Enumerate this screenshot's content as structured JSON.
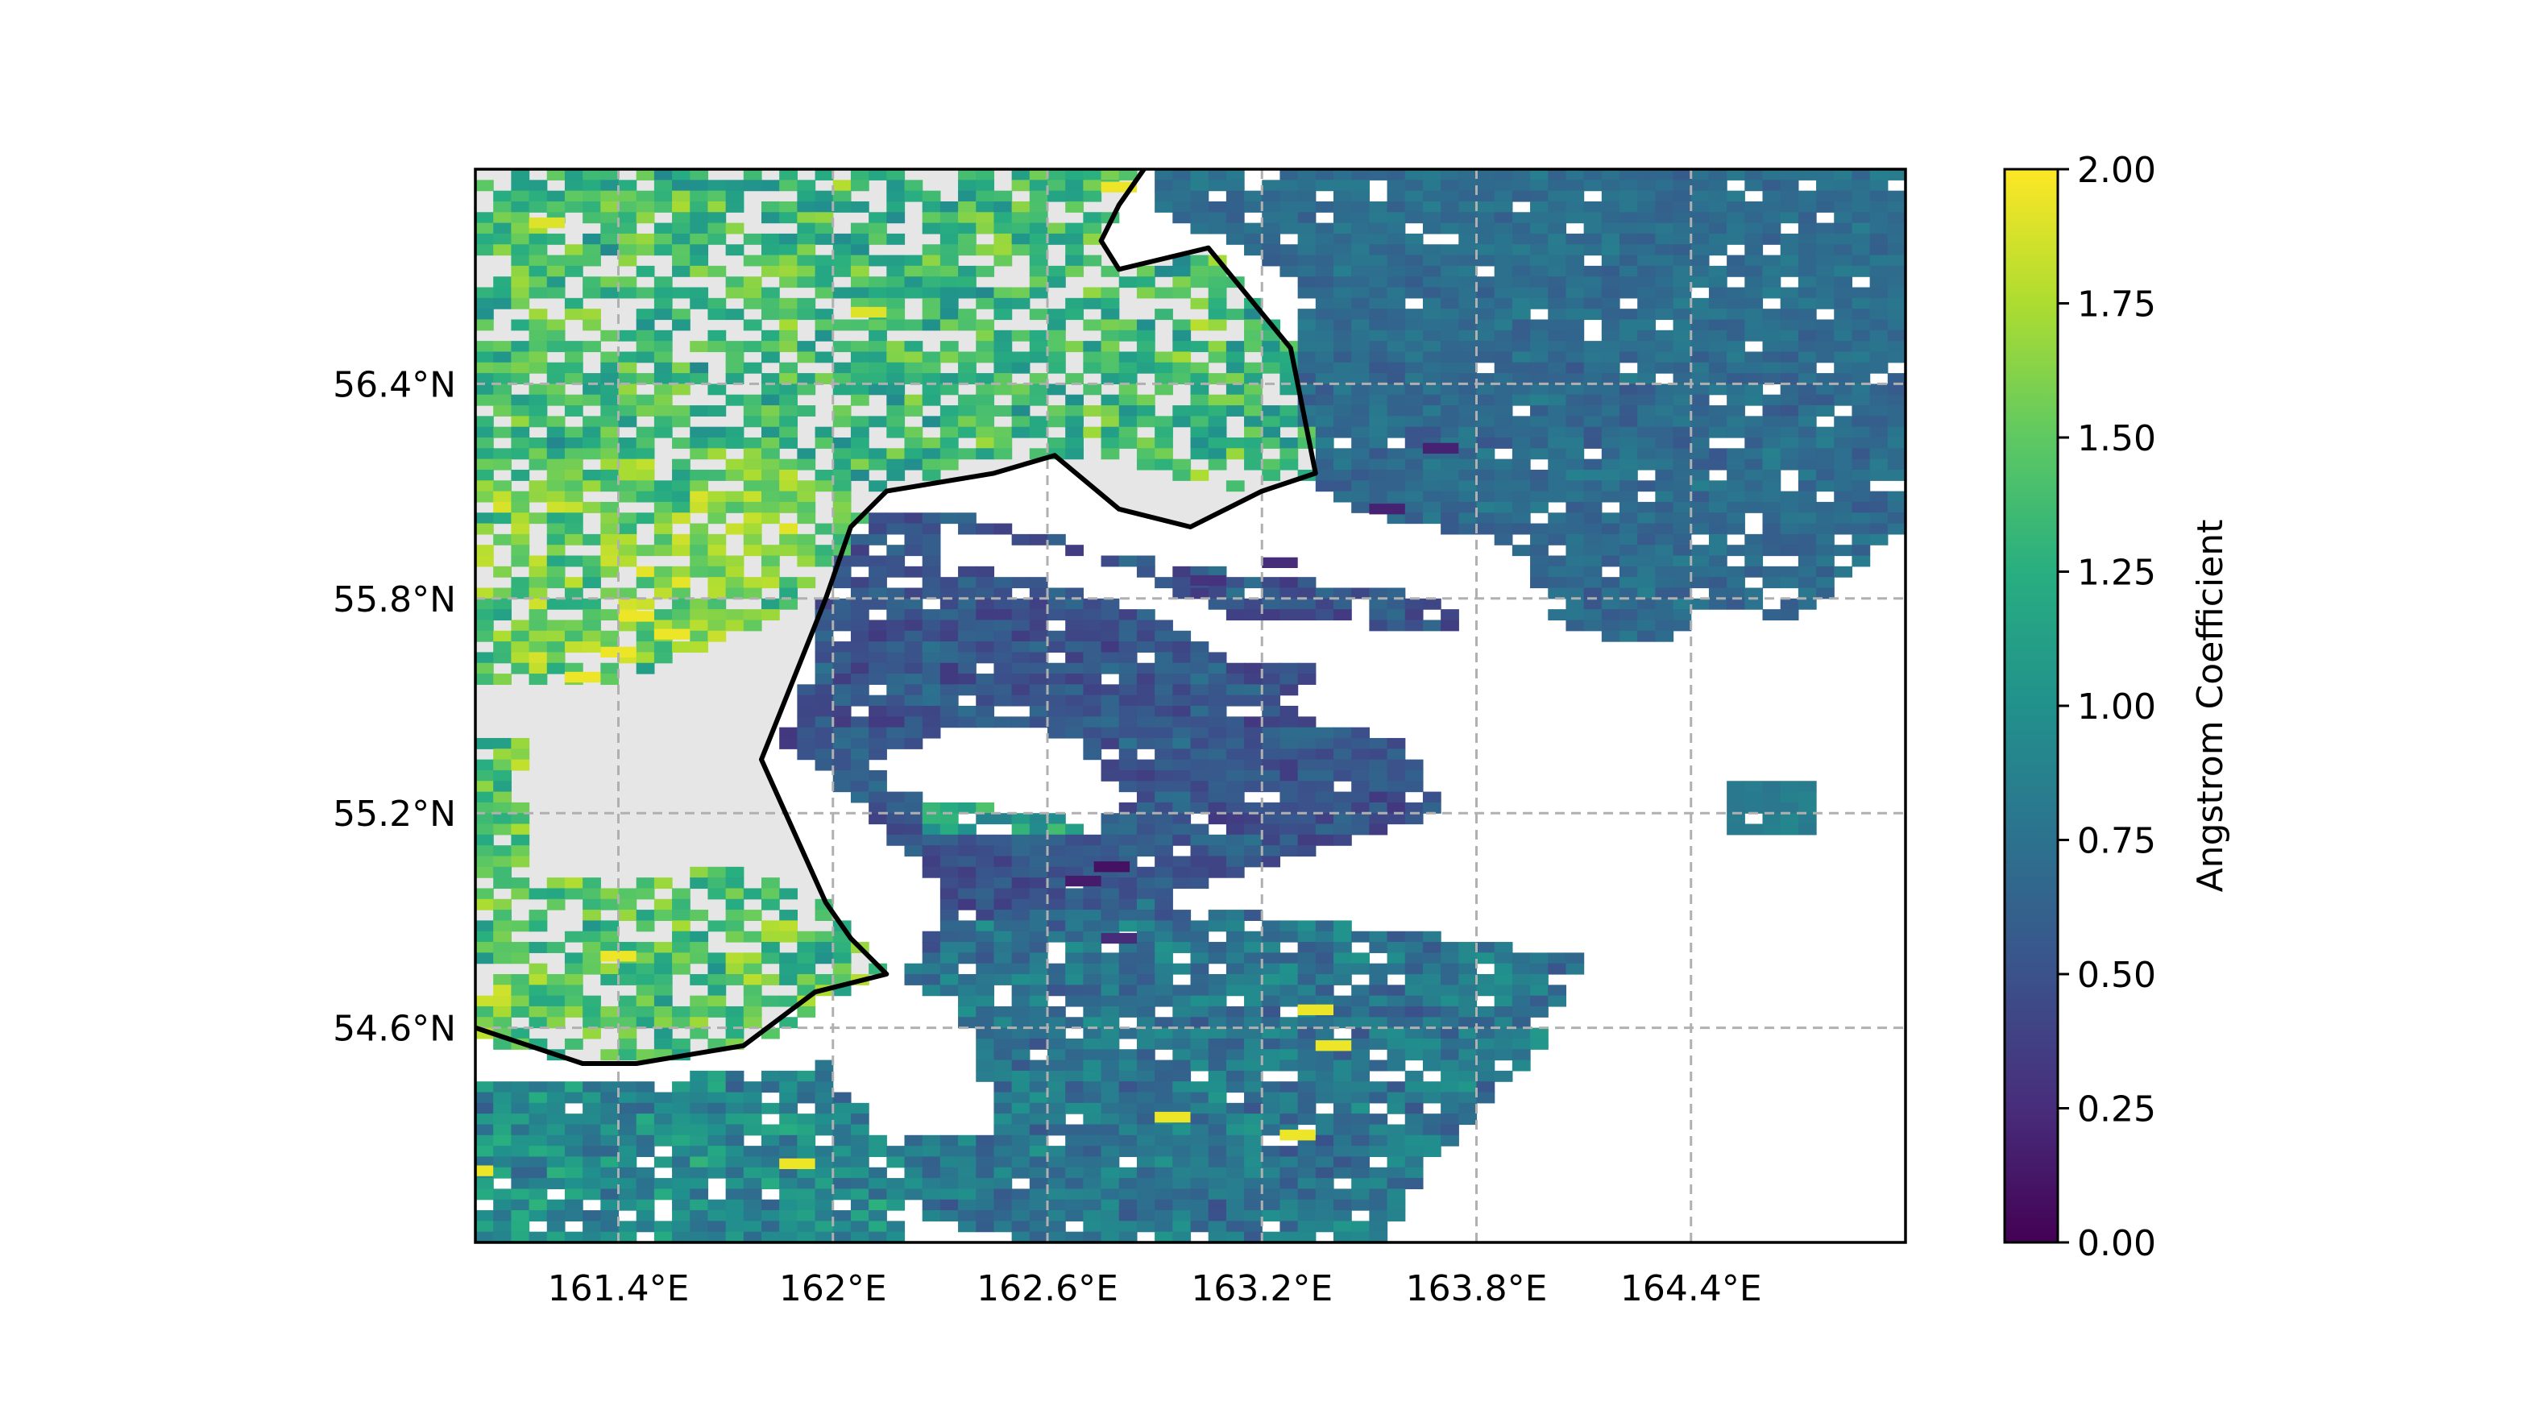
{
  "chart_data": {
    "type": "heatmap",
    "colorbar": {
      "label": "Angstrom Coefficient",
      "range": [
        0.0,
        2.0
      ],
      "colormap": "viridis",
      "tick_values": [
        0.0,
        0.25,
        0.5,
        0.75,
        1.0,
        1.25,
        1.5,
        1.75,
        2.0
      ],
      "tick_labels": [
        "0.00",
        "0.25",
        "0.50",
        "0.75",
        "1.00",
        "1.25",
        "1.50",
        "1.75",
        "2.00"
      ]
    },
    "x_axis": {
      "range": [
        161.0,
        165.0
      ],
      "tick_values": [
        161.4,
        162.0,
        162.6,
        163.2,
        163.8,
        164.4
      ],
      "tick_labels": [
        "161.4°E",
        "162°E",
        "162.6°E",
        "163.2°E",
        "163.8°E",
        "164.4°E"
      ]
    },
    "y_axis": {
      "range": [
        54.0,
        57.0
      ],
      "tick_values": [
        54.6,
        55.2,
        55.8,
        56.4
      ],
      "tick_labels": [
        "54.6°N",
        "55.2°N",
        "55.8°N",
        "56.4°N"
      ]
    },
    "gridlines": true,
    "land_color": "#e6e6e6",
    "no_data_color": "#ffffff",
    "coastline": [
      [
        161.0,
        54.6
      ],
      [
        161.3,
        54.5
      ],
      [
        161.45,
        54.5
      ],
      [
        161.75,
        54.55
      ],
      [
        161.95,
        54.7
      ],
      [
        162.15,
        54.75
      ],
      [
        162.05,
        54.85
      ],
      [
        161.98,
        54.95
      ],
      [
        161.8,
        55.35
      ],
      [
        161.98,
        55.8
      ],
      [
        162.05,
        56.0
      ],
      [
        162.15,
        56.1
      ],
      [
        162.45,
        56.15
      ],
      [
        162.62,
        56.2
      ],
      [
        162.8,
        56.05
      ],
      [
        163.0,
        56.0
      ],
      [
        163.2,
        56.1
      ],
      [
        163.35,
        56.15
      ],
      [
        163.28,
        56.5
      ],
      [
        163.05,
        56.78
      ],
      [
        162.8,
        56.72
      ],
      [
        162.75,
        56.8
      ],
      [
        162.8,
        56.9
      ],
      [
        162.87,
        57.0
      ]
    ],
    "regions": [
      {
        "name": "ne-ocean",
        "mean": 0.72,
        "spread": 0.1,
        "poly": [
          [
            162.9,
            57.0
          ],
          [
            165.0,
            57.0
          ],
          [
            165.0,
            56.5
          ],
          [
            163.3,
            56.5
          ],
          [
            163.28,
            56.7
          ],
          [
            163.05,
            56.82
          ],
          [
            162.88,
            56.9
          ]
        ]
      },
      {
        "name": "e-ocean",
        "mean": 0.7,
        "spread": 0.12,
        "poly": [
          [
            163.3,
            56.5
          ],
          [
            165.0,
            56.5
          ],
          [
            165.0,
            56.0
          ],
          [
            164.7,
            55.75
          ],
          [
            164.0,
            55.78
          ],
          [
            163.9,
            55.95
          ],
          [
            163.45,
            56.05
          ],
          [
            163.32,
            56.15
          ]
        ]
      },
      {
        "name": "se-ext",
        "mean": 0.68,
        "spread": 0.12,
        "poly": [
          [
            164.0,
            55.78
          ],
          [
            164.7,
            55.75
          ],
          [
            164.9,
            55.95
          ],
          [
            164.45,
            55.8
          ],
          [
            164.35,
            55.68
          ],
          [
            164.05,
            55.7
          ]
        ]
      },
      {
        "name": "c-ocean",
        "mean": 0.55,
        "spread": 0.15,
        "poly": [
          [
            162.05,
            56.05
          ],
          [
            162.3,
            56.05
          ],
          [
            162.9,
            55.9
          ],
          [
            163.3,
            55.85
          ],
          [
            163.7,
            55.8
          ],
          [
            163.9,
            55.65
          ],
          [
            163.4,
            55.6
          ],
          [
            163.25,
            55.5
          ],
          [
            163.6,
            55.4
          ],
          [
            163.7,
            55.2
          ],
          [
            163.2,
            55.05
          ],
          [
            162.9,
            54.95
          ],
          [
            162.4,
            54.9
          ],
          [
            162.2,
            54.75
          ],
          [
            162.3,
            54.9
          ],
          [
            162.3,
            55.0
          ],
          [
            162.0,
            55.3
          ],
          [
            161.85,
            55.4
          ],
          [
            161.95,
            55.6
          ],
          [
            161.98,
            55.85
          ]
        ]
      },
      {
        "name": "s-ocean",
        "mean": 0.78,
        "spread": 0.2,
        "poly": [
          [
            162.2,
            54.75
          ],
          [
            162.4,
            54.9
          ],
          [
            162.9,
            54.95
          ],
          [
            163.3,
            54.9
          ],
          [
            163.75,
            54.85
          ],
          [
            164.1,
            54.8
          ],
          [
            163.95,
            54.5
          ],
          [
            163.65,
            54.2
          ],
          [
            163.55,
            54.0
          ],
          [
            162.6,
            54.0
          ],
          [
            162.3,
            54.05
          ],
          [
            162.1,
            54.2
          ],
          [
            162.35,
            54.45
          ],
          [
            162.35,
            54.65
          ]
        ]
      },
      {
        "name": "sw-ocean",
        "mean": 0.95,
        "spread": 0.25,
        "poly": [
          [
            161.0,
            54.45
          ],
          [
            161.4,
            54.45
          ],
          [
            162.0,
            54.5
          ],
          [
            162.2,
            54.2
          ],
          [
            162.2,
            54.0
          ],
          [
            161.0,
            54.0
          ]
        ]
      },
      {
        "name": "nw-land",
        "mean": 1.35,
        "spread": 0.3,
        "poly": [
          [
            161.0,
            57.0
          ],
          [
            162.85,
            57.0
          ],
          [
            162.75,
            56.8
          ],
          [
            162.8,
            56.7
          ],
          [
            163.05,
            56.78
          ],
          [
            163.28,
            56.5
          ],
          [
            163.35,
            56.15
          ],
          [
            163.2,
            56.1
          ],
          [
            162.6,
            56.2
          ],
          [
            162.15,
            56.12
          ],
          [
            162.05,
            56.05
          ],
          [
            161.6,
            56.1
          ],
          [
            161.4,
            56.0
          ],
          [
            161.0,
            56.1
          ]
        ]
      },
      {
        "name": "w-land",
        "mean": 1.55,
        "spread": 0.3,
        "poly": [
          [
            161.0,
            55.5
          ],
          [
            161.4,
            55.55
          ],
          [
            161.85,
            55.75
          ],
          [
            162.1,
            56.0
          ],
          [
            162.0,
            56.2
          ],
          [
            161.5,
            56.2
          ],
          [
            161.0,
            56.15
          ]
        ]
      },
      {
        "name": "sw-land",
        "mean": 1.45,
        "spread": 0.3,
        "poly": [
          [
            161.0,
            54.55
          ],
          [
            161.4,
            54.5
          ],
          [
            161.8,
            54.55
          ],
          [
            162.15,
            54.75
          ],
          [
            161.95,
            54.98
          ],
          [
            161.7,
            55.05
          ],
          [
            161.4,
            55.0
          ],
          [
            161.0,
            55.05
          ]
        ]
      },
      {
        "name": "land-west-strip",
        "mean": 1.5,
        "spread": 0.3,
        "poly": [
          [
            161.0,
            55.05
          ],
          [
            161.15,
            55.05
          ],
          [
            161.15,
            55.4
          ],
          [
            161.0,
            55.4
          ]
        ]
      },
      {
        "name": "land-mid-west",
        "mean": 1.65,
        "spread": 0.25,
        "poly": [
          [
            161.3,
            55.6
          ],
          [
            161.8,
            55.75
          ],
          [
            161.9,
            55.9
          ],
          [
            161.85,
            56.1
          ],
          [
            161.6,
            56.1
          ],
          [
            161.35,
            55.9
          ]
        ]
      },
      {
        "name": "clear-patch",
        "mean": 1.2,
        "spread": 0.25,
        "poly": [
          [
            162.25,
            55.35
          ],
          [
            162.75,
            55.35
          ],
          [
            162.75,
            55.15
          ],
          [
            162.25,
            55.15
          ]
        ]
      },
      {
        "name": "east-islet",
        "mean": 0.85,
        "spread": 0.05,
        "poly": [
          [
            164.5,
            55.3
          ],
          [
            164.75,
            55.3
          ],
          [
            164.75,
            55.15
          ],
          [
            164.5,
            55.15
          ]
        ]
      }
    ],
    "holes": [
      {
        "name": "cloud-band",
        "poly": [
          [
            162.3,
            56.0
          ],
          [
            162.6,
            55.95
          ],
          [
            162.9,
            55.85
          ],
          [
            163.1,
            55.75
          ],
          [
            163.4,
            55.75
          ],
          [
            163.6,
            55.7
          ],
          [
            163.9,
            55.75
          ],
          [
            163.9,
            55.6
          ],
          [
            163.6,
            55.55
          ],
          [
            163.35,
            55.6
          ],
          [
            163.1,
            55.65
          ],
          [
            162.9,
            55.75
          ],
          [
            162.6,
            55.85
          ],
          [
            162.3,
            55.9
          ]
        ]
      },
      {
        "name": "cloud-patch",
        "poly": [
          [
            162.1,
            55.35
          ],
          [
            162.4,
            55.45
          ],
          [
            162.7,
            55.4
          ],
          [
            162.8,
            55.2
          ],
          [
            162.55,
            55.2
          ],
          [
            162.2,
            55.25
          ]
        ]
      },
      {
        "name": "land-gap",
        "poly": [
          [
            161.0,
            55.4
          ],
          [
            161.3,
            55.4
          ],
          [
            161.3,
            55.55
          ],
          [
            161.0,
            55.55
          ]
        ]
      },
      {
        "name": "south-gap",
        "poly": [
          [
            162.1,
            54.6
          ],
          [
            162.4,
            54.6
          ],
          [
            162.45,
            54.3
          ],
          [
            162.15,
            54.3
          ]
        ]
      }
    ],
    "extreme_pixels": [
      {
        "lon": 162.78,
        "lat": 55.05,
        "value": 0.1
      },
      {
        "lon": 162.7,
        "lat": 55.01,
        "value": 0.15
      },
      {
        "lon": 163.7,
        "lat": 56.22,
        "value": 0.2
      },
      {
        "lon": 163.25,
        "lat": 55.9,
        "value": 0.25
      },
      {
        "lon": 163.05,
        "lat": 55.85,
        "value": 0.3
      },
      {
        "lon": 163.55,
        "lat": 56.05,
        "value": 0.2
      },
      {
        "lon": 162.8,
        "lat": 54.85,
        "value": 0.25
      },
      {
        "lon": 163.35,
        "lat": 54.65,
        "value": 1.95
      },
      {
        "lon": 163.4,
        "lat": 54.55,
        "value": 1.95
      },
      {
        "lon": 162.95,
        "lat": 54.35,
        "value": 1.95
      },
      {
        "lon": 163.3,
        "lat": 54.3,
        "value": 1.95
      },
      {
        "lon": 161.45,
        "lat": 55.75,
        "value": 1.95
      },
      {
        "lon": 161.55,
        "lat": 55.7,
        "value": 1.95
      },
      {
        "lon": 161.4,
        "lat": 55.65,
        "value": 1.95
      },
      {
        "lon": 161.3,
        "lat": 55.58,
        "value": 1.95
      },
      {
        "lon": 161.4,
        "lat": 54.8,
        "value": 1.95
      },
      {
        "lon": 161.0,
        "lat": 54.2,
        "value": 1.95
      },
      {
        "lon": 161.9,
        "lat": 54.22,
        "value": 1.95
      },
      {
        "lon": 161.2,
        "lat": 56.85,
        "value": 1.9
      },
      {
        "lon": 162.8,
        "lat": 56.95,
        "value": 1.95
      },
      {
        "lon": 162.1,
        "lat": 56.6,
        "value": 1.9
      }
    ]
  }
}
